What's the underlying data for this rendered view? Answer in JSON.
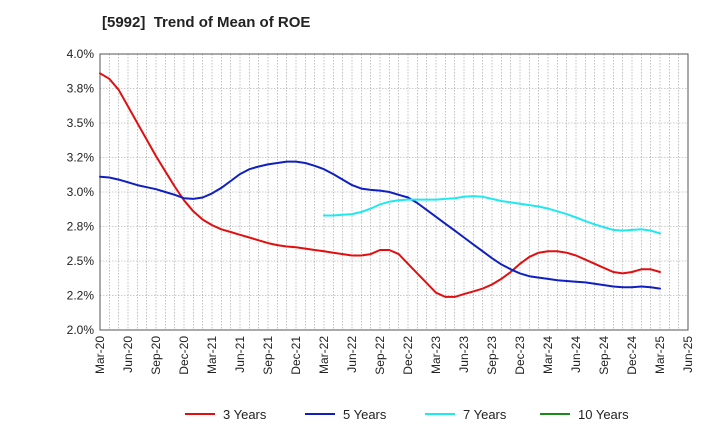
{
  "chart_data": {
    "type": "line",
    "title": "[5992]  Trend of Mean of ROE",
    "xlabel": "",
    "ylabel": "",
    "ylim": [
      2.0,
      4.0
    ],
    "y_ticks": [
      "2.0%",
      "2.2%",
      "2.5%",
      "2.8%",
      "3.0%",
      "3.2%",
      "3.5%",
      "3.8%",
      "4.0%"
    ],
    "y_tick_values": [
      2.0,
      2.25,
      2.5,
      2.75,
      3.0,
      3.25,
      3.5,
      3.75,
      4.0
    ],
    "x_ticks": [
      "Mar-20",
      "Jun-20",
      "Sep-20",
      "Dec-20",
      "Mar-21",
      "Jun-21",
      "Sep-21",
      "Dec-21",
      "Mar-22",
      "Jun-22",
      "Sep-22",
      "Dec-22",
      "Mar-23",
      "Jun-23",
      "Sep-23",
      "Dec-23",
      "Mar-24",
      "Jun-24",
      "Sep-24",
      "Dec-24",
      "Mar-25",
      "Jun-25"
    ],
    "grid": true,
    "legend_position": "bottom",
    "series": [
      {
        "name": "3 Years",
        "color": "#e01010",
        "points": [
          [
            "Mar-20",
            3.86
          ],
          [
            "Apr-20",
            3.82
          ],
          [
            "May-20",
            3.74
          ],
          [
            "Jun-20",
            3.62
          ],
          [
            "Jul-20",
            3.5
          ],
          [
            "Aug-20",
            3.38
          ],
          [
            "Sep-20",
            3.26
          ],
          [
            "Oct-20",
            3.15
          ],
          [
            "Nov-20",
            3.04
          ],
          [
            "Dec-20",
            2.94
          ],
          [
            "Jan-21",
            2.86
          ],
          [
            "Feb-21",
            2.8
          ],
          [
            "Mar-21",
            2.76
          ],
          [
            "Apr-21",
            2.73
          ],
          [
            "May-21",
            2.71
          ],
          [
            "Jun-21",
            2.69
          ],
          [
            "Jul-21",
            2.67
          ],
          [
            "Aug-21",
            2.65
          ],
          [
            "Sep-21",
            2.63
          ],
          [
            "Oct-21",
            2.615
          ],
          [
            "Nov-21",
            2.605
          ],
          [
            "Dec-21",
            2.6
          ],
          [
            "Jan-22",
            2.59
          ],
          [
            "Feb-22",
            2.58
          ],
          [
            "Mar-22",
            2.57
          ],
          [
            "Apr-22",
            2.56
          ],
          [
            "May-22",
            2.55
          ],
          [
            "Jun-22",
            2.54
          ],
          [
            "Jul-22",
            2.54
          ],
          [
            "Aug-22",
            2.55
          ],
          [
            "Sep-22",
            2.58
          ],
          [
            "Oct-22",
            2.58
          ],
          [
            "Nov-22",
            2.55
          ],
          [
            "Dec-22",
            2.48
          ],
          [
            "Jan-23",
            2.41
          ],
          [
            "Feb-23",
            2.34
          ],
          [
            "Mar-23",
            2.27
          ],
          [
            "Apr-23",
            2.24
          ],
          [
            "May-23",
            2.24
          ],
          [
            "Jun-23",
            2.26
          ],
          [
            "Jul-23",
            2.28
          ],
          [
            "Aug-23",
            2.3
          ],
          [
            "Sep-23",
            2.33
          ],
          [
            "Oct-23",
            2.37
          ],
          [
            "Nov-23",
            2.42
          ],
          [
            "Dec-23",
            2.48
          ],
          [
            "Jan-24",
            2.53
          ],
          [
            "Feb-24",
            2.56
          ],
          [
            "Mar-24",
            2.57
          ],
          [
            "Apr-24",
            2.57
          ],
          [
            "May-24",
            2.56
          ],
          [
            "Jun-24",
            2.54
          ],
          [
            "Jul-24",
            2.51
          ],
          [
            "Aug-24",
            2.48
          ],
          [
            "Sep-24",
            2.45
          ],
          [
            "Oct-24",
            2.42
          ],
          [
            "Nov-24",
            2.41
          ],
          [
            "Dec-24",
            2.42
          ],
          [
            "Jan-25",
            2.44
          ],
          [
            "Feb-25",
            2.44
          ],
          [
            "Mar-25",
            2.42
          ]
        ]
      },
      {
        "name": "5 Years",
        "color": "#1020c0",
        "points": [
          [
            "Mar-20",
            3.11
          ],
          [
            "Apr-20",
            3.105
          ],
          [
            "May-20",
            3.09
          ],
          [
            "Jun-20",
            3.07
          ],
          [
            "Jul-20",
            3.05
          ],
          [
            "Aug-20",
            3.035
          ],
          [
            "Sep-20",
            3.02
          ],
          [
            "Oct-20",
            3.0
          ],
          [
            "Nov-20",
            2.98
          ],
          [
            "Dec-20",
            2.955
          ],
          [
            "Jan-21",
            2.95
          ],
          [
            "Feb-21",
            2.96
          ],
          [
            "Mar-21",
            2.99
          ],
          [
            "Apr-21",
            3.03
          ],
          [
            "May-21",
            3.08
          ],
          [
            "Jun-21",
            3.13
          ],
          [
            "Jul-21",
            3.165
          ],
          [
            "Aug-21",
            3.185
          ],
          [
            "Sep-21",
            3.2
          ],
          [
            "Oct-21",
            3.21
          ],
          [
            "Nov-21",
            3.22
          ],
          [
            "Dec-21",
            3.22
          ],
          [
            "Jan-22",
            3.21
          ],
          [
            "Feb-22",
            3.19
          ],
          [
            "Mar-22",
            3.165
          ],
          [
            "Apr-22",
            3.13
          ],
          [
            "May-22",
            3.09
          ],
          [
            "Jun-22",
            3.05
          ],
          [
            "Jul-22",
            3.025
          ],
          [
            "Aug-22",
            3.015
          ],
          [
            "Sep-22",
            3.01
          ],
          [
            "Oct-22",
            3.0
          ],
          [
            "Nov-22",
            2.98
          ],
          [
            "Dec-22",
            2.96
          ],
          [
            "Jan-23",
            2.92
          ],
          [
            "Feb-23",
            2.87
          ],
          [
            "Mar-23",
            2.82
          ],
          [
            "Apr-23",
            2.77
          ],
          [
            "May-23",
            2.72
          ],
          [
            "Jun-23",
            2.67
          ],
          [
            "Jul-23",
            2.62
          ],
          [
            "Aug-23",
            2.57
          ],
          [
            "Sep-23",
            2.52
          ],
          [
            "Oct-23",
            2.475
          ],
          [
            "Nov-23",
            2.44
          ],
          [
            "Dec-23",
            2.41
          ],
          [
            "Jan-24",
            2.39
          ],
          [
            "Feb-24",
            2.38
          ],
          [
            "Mar-24",
            2.37
          ],
          [
            "Apr-24",
            2.36
          ],
          [
            "May-24",
            2.355
          ],
          [
            "Jun-24",
            2.35
          ],
          [
            "Jul-24",
            2.345
          ],
          [
            "Aug-24",
            2.335
          ],
          [
            "Sep-24",
            2.325
          ],
          [
            "Oct-24",
            2.315
          ],
          [
            "Nov-24",
            2.31
          ],
          [
            "Dec-24",
            2.31
          ],
          [
            "Jan-25",
            2.315
          ],
          [
            "Feb-25",
            2.31
          ],
          [
            "Mar-25",
            2.3
          ]
        ]
      },
      {
        "name": "7 Years",
        "color": "#20e8f0",
        "points": [
          [
            "Mar-22",
            2.83
          ],
          [
            "Apr-22",
            2.83
          ],
          [
            "May-22",
            2.835
          ],
          [
            "Jun-22",
            2.84
          ],
          [
            "Jul-22",
            2.855
          ],
          [
            "Aug-22",
            2.88
          ],
          [
            "Sep-22",
            2.91
          ],
          [
            "Oct-22",
            2.93
          ],
          [
            "Nov-22",
            2.94
          ],
          [
            "Dec-22",
            2.945
          ],
          [
            "Jan-23",
            2.945
          ],
          [
            "Feb-23",
            2.945
          ],
          [
            "Mar-23",
            2.945
          ],
          [
            "Apr-23",
            2.95
          ],
          [
            "May-23",
            2.955
          ],
          [
            "Jun-23",
            2.965
          ],
          [
            "Jul-23",
            2.97
          ],
          [
            "Aug-23",
            2.965
          ],
          [
            "Sep-23",
            2.95
          ],
          [
            "Oct-23",
            2.935
          ],
          [
            "Nov-23",
            2.925
          ],
          [
            "Dec-23",
            2.915
          ],
          [
            "Jan-24",
            2.905
          ],
          [
            "Feb-24",
            2.895
          ],
          [
            "Mar-24",
            2.88
          ],
          [
            "Apr-24",
            2.86
          ],
          [
            "May-24",
            2.84
          ],
          [
            "Jun-24",
            2.815
          ],
          [
            "Jul-24",
            2.79
          ],
          [
            "Aug-24",
            2.765
          ],
          [
            "Sep-24",
            2.745
          ],
          [
            "Oct-24",
            2.725
          ],
          [
            "Nov-24",
            2.72
          ],
          [
            "Dec-24",
            2.725
          ],
          [
            "Jan-25",
            2.73
          ],
          [
            "Feb-25",
            2.72
          ],
          [
            "Mar-25",
            2.7
          ]
        ]
      },
      {
        "name": "10 Years",
        "color": "#1a8a1a",
        "points": []
      }
    ]
  }
}
